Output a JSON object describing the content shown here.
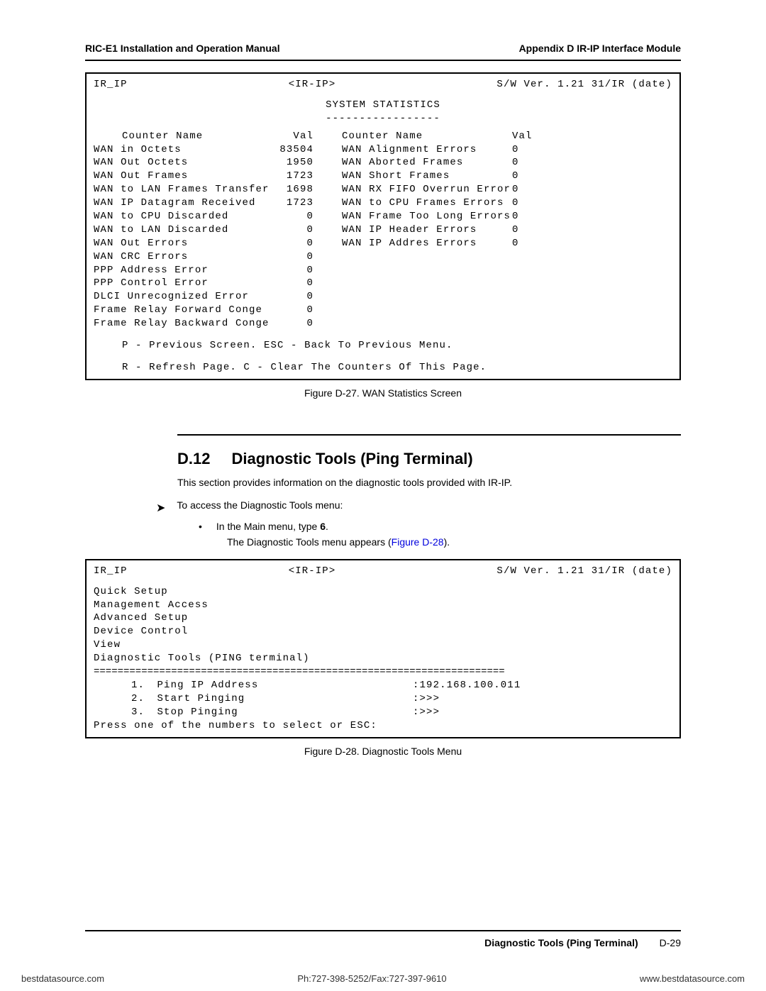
{
  "header": {
    "left": "RIC-E1 Installation and Operation Manual",
    "right": "Appendix D  IR-IP Interface Module"
  },
  "screen1": {
    "hdr_left": "IR_IP",
    "hdr_mid": "<IR-IP>",
    "hdr_right": "S/W Ver. 1.21 31/IR (date)",
    "title": "SYSTEM STATISTICS",
    "dashes": "-----------------",
    "col_hdr_name": "Counter Name",
    "col_hdr_val": "Val",
    "left_counters": [
      {
        "name": "WAN in Octets",
        "val": "83504"
      },
      {
        "name": "WAN Out Octets",
        "val": "1950"
      },
      {
        "name": "WAN Out Frames",
        "val": "1723"
      },
      {
        "name": "WAN to LAN Frames Transfer",
        "val": "1698"
      },
      {
        "name": "WAN IP Datagram Received",
        "val": "1723"
      },
      {
        "name": "WAN to CPU Discarded",
        "val": "0"
      },
      {
        "name": "WAN to LAN Discarded",
        "val": "0"
      },
      {
        "name": "WAN Out Errors",
        "val": "0"
      },
      {
        "name": "WAN CRC Errors",
        "val": "0"
      },
      {
        "name": "",
        "val": ""
      },
      {
        "name": "PPP Address Error",
        "val": "0"
      },
      {
        "name": "PPP Control Error",
        "val": "0"
      },
      {
        "name": "DLCI Unrecognized Error",
        "val": "0"
      },
      {
        "name": "Frame Relay Forward Conge",
        "val": "0"
      },
      {
        "name": "Frame Relay Backward Conge",
        "val": "0"
      }
    ],
    "right_counters": [
      {
        "name": "WAN Alignment Errors",
        "val": "0"
      },
      {
        "name": "WAN Aborted Frames",
        "val": "0"
      },
      {
        "name": "WAN Short Frames",
        "val": "0"
      },
      {
        "name": "WAN RX FIFO Overrun Error",
        "val": "0"
      },
      {
        "name": "WAN to CPU Frames Errors",
        "val": "0"
      },
      {
        "name": "WAN Frame Too Long Errors",
        "val": "0"
      },
      {
        "name": "WAN IP Header Errors",
        "val": "0"
      },
      {
        "name": "WAN IP Addres Errors",
        "val": "0"
      }
    ],
    "help1": "P - Previous Screen. ESC - Back To Previous Menu.",
    "help2": "R - Refresh Page. C - Clear The Counters Of This Page."
  },
  "caption1": "Figure D-27.  WAN Statistics Screen",
  "section": {
    "num": "D.12",
    "title": "Diagnostic Tools (Ping Terminal)",
    "desc": "This section provides information on the diagnostic tools provided with IR-IP.",
    "proc": "To access the Diagnostic Tools menu:",
    "step1a": "In the Main menu, type ",
    "step1b": "6",
    "step1c": ".",
    "sub1a": "The Diagnostic Tools menu appears (",
    "sub1b": "Figure D-28",
    "sub1c": ")."
  },
  "screen2": {
    "hdr_left": "IR_IP",
    "hdr_mid": "<IR-IP>",
    "hdr_right": "S/W Ver. 1.21 31/IR (date)",
    "breadcrumbs": [
      "Quick Setup",
      "Management Access",
      "Advanced Setup",
      "Device Control",
      "View",
      "Diagnostic Tools (PING terminal)"
    ],
    "sep": "=====================================================================",
    "items": [
      {
        "num": "1.",
        "label": "Ping IP Address",
        "val": ":192.168.100.011"
      },
      {
        "num": "2.",
        "label": "Start Pinging",
        "val": ":>>>"
      },
      {
        "num": "3.",
        "label": "Stop Pinging",
        "val": ":>>>"
      }
    ],
    "prompt": "Press one of the numbers to select or ESC:"
  },
  "caption2": "Figure D-28.  Diagnostic Tools Menu",
  "footer": {
    "label": "Diagnostic Tools (Ping Terminal)",
    "pagenum": "D-29"
  },
  "bottom": {
    "left": "bestdatasource.com",
    "mid": "Ph:727-398-5252/Fax:727-397-9610",
    "right": "www.bestdatasource.com"
  }
}
